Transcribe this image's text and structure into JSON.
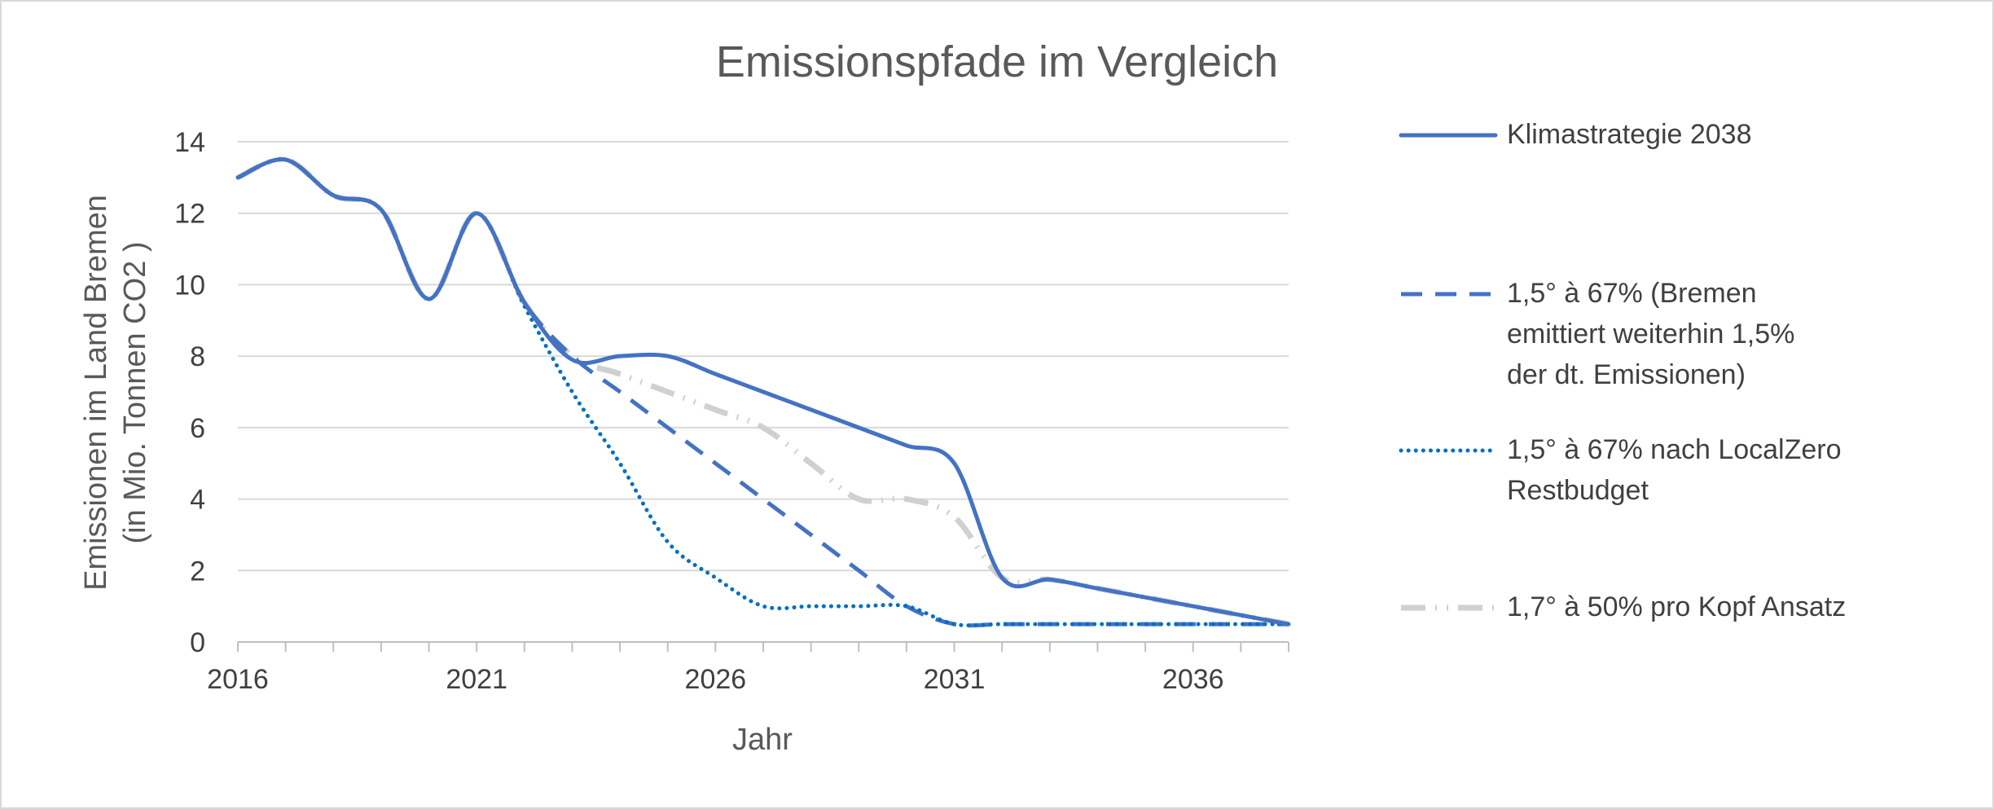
{
  "chart_data": {
    "type": "line",
    "title": "Emissionspfade im Vergleich",
    "xlabel": "Jahr",
    "ylabel_lines": [
      "Emissionen im Land Bremen",
      "(in Mio. Tonnen CO2 )"
    ],
    "xlim": [
      2016,
      2038
    ],
    "ylim": [
      0,
      14
    ],
    "x_ticks": [
      2016,
      2021,
      2026,
      2031,
      2036
    ],
    "y_ticks": [
      0,
      2,
      4,
      6,
      8,
      10,
      12,
      14
    ],
    "grid": "horizontal",
    "legend_position": "right",
    "series": [
      {
        "name": "Klimastrategie 2038",
        "legend_lines": [
          "Klimastrategie 2038"
        ],
        "color": "#4472c4",
        "style": "solid",
        "points": [
          [
            2016,
            13.0
          ],
          [
            2017,
            13.5
          ],
          [
            2018,
            12.5
          ],
          [
            2019,
            12.1
          ],
          [
            2020,
            9.6
          ],
          [
            2021,
            12.0
          ],
          [
            2022,
            9.5
          ],
          [
            2023,
            7.9
          ],
          [
            2024,
            8.0
          ],
          [
            2025,
            8.0
          ],
          [
            2026,
            7.5
          ],
          [
            2027,
            7.0
          ],
          [
            2028,
            6.5
          ],
          [
            2029,
            6.0
          ],
          [
            2030,
            5.5
          ],
          [
            2031,
            5.0
          ],
          [
            2032,
            1.8
          ],
          [
            2033,
            1.75
          ],
          [
            2034,
            1.5
          ],
          [
            2035,
            1.25
          ],
          [
            2036,
            1.0
          ],
          [
            2037,
            0.75
          ],
          [
            2038,
            0.5
          ]
        ]
      },
      {
        "name": "1,5° à 67% (Bremen emittiert weiterhin 1,5% der dt. Emissionen)",
        "legend_lines": [
          "1,5° à 67% (Bremen",
          "emittiert weiterhin 1,5%",
          "der dt. Emissionen)"
        ],
        "color": "#4472c4",
        "style": "dash",
        "points": [
          [
            2016,
            13.0
          ],
          [
            2017,
            13.5
          ],
          [
            2018,
            12.5
          ],
          [
            2019,
            12.1
          ],
          [
            2020,
            9.6
          ],
          [
            2021,
            12.0
          ],
          [
            2022,
            9.5
          ],
          [
            2023,
            8.0
          ],
          [
            2024,
            7.0
          ],
          [
            2025,
            6.0
          ],
          [
            2026,
            5.0
          ],
          [
            2027,
            4.0
          ],
          [
            2028,
            3.0
          ],
          [
            2029,
            2.0
          ],
          [
            2030,
            1.0
          ],
          [
            2031,
            0.5
          ],
          [
            2032,
            0.5
          ],
          [
            2033,
            0.5
          ],
          [
            2034,
            0.5
          ],
          [
            2035,
            0.5
          ],
          [
            2036,
            0.5
          ],
          [
            2037,
            0.5
          ],
          [
            2038,
            0.5
          ]
        ]
      },
      {
        "name": "1,5° à 67% nach LocalZero Restbudget",
        "legend_lines": [
          "1,5° à 67% nach LocalZero",
          "Restbudget"
        ],
        "color": "#0070c0",
        "style": "dot",
        "points": [
          [
            2016,
            13.0
          ],
          [
            2017,
            13.5
          ],
          [
            2018,
            12.5
          ],
          [
            2019,
            12.1
          ],
          [
            2020,
            9.6
          ],
          [
            2021,
            12.0
          ],
          [
            2022,
            9.4
          ],
          [
            2023,
            7.0
          ],
          [
            2024,
            5.0
          ],
          [
            2025,
            2.8
          ],
          [
            2026,
            1.8
          ],
          [
            2027,
            1.0
          ],
          [
            2028,
            1.0
          ],
          [
            2029,
            1.0
          ],
          [
            2030,
            1.0
          ],
          [
            2031,
            0.5
          ],
          [
            2032,
            0.5
          ],
          [
            2033,
            0.5
          ],
          [
            2034,
            0.5
          ],
          [
            2035,
            0.5
          ],
          [
            2036,
            0.5
          ],
          [
            2037,
            0.5
          ],
          [
            2038,
            0.5
          ]
        ]
      },
      {
        "name": "1,7° à 50% pro Kopf Ansatz",
        "legend_lines": [
          "1,7° à 50% pro Kopf Ansatz"
        ],
        "color": "#d0d0d0",
        "style": "dashdotdot",
        "points": [
          [
            2016,
            13.0
          ],
          [
            2017,
            13.5
          ],
          [
            2018,
            12.5
          ],
          [
            2019,
            12.1
          ],
          [
            2020,
            9.6
          ],
          [
            2021,
            12.0
          ],
          [
            2022,
            9.5
          ],
          [
            2023,
            8.0
          ],
          [
            2024,
            7.5
          ],
          [
            2025,
            7.0
          ],
          [
            2026,
            6.5
          ],
          [
            2027,
            6.0
          ],
          [
            2028,
            5.0
          ],
          [
            2029,
            4.0
          ],
          [
            2030,
            4.0
          ],
          [
            2031,
            3.5
          ],
          [
            2032,
            1.8
          ],
          [
            2033,
            1.75
          ],
          [
            2034,
            1.5
          ],
          [
            2035,
            1.25
          ],
          [
            2036,
            1.0
          ],
          [
            2037,
            0.75
          ],
          [
            2038,
            0.5
          ]
        ]
      }
    ]
  }
}
